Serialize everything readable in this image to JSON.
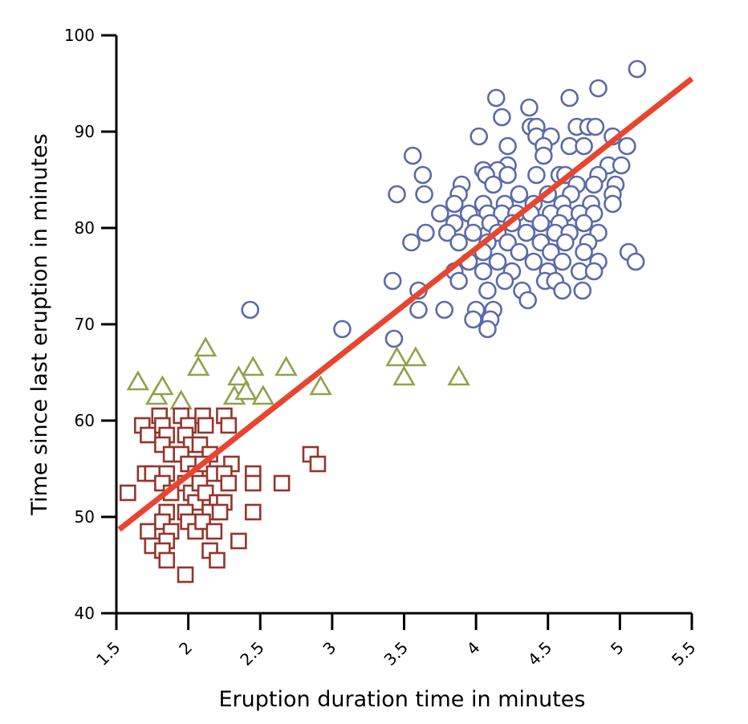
{
  "chart_data": {
    "type": "scatter",
    "title": "",
    "xlabel": "Eruption duration time in minutes",
    "ylabel": "Time since last eruption in minutes",
    "xlim": [
      1.5,
      5.5
    ],
    "ylim": [
      40,
      100
    ],
    "xticks": [
      "1.5",
      "2",
      "2.5",
      "3",
      "3.5",
      "4",
      "4.5",
      "5",
      "5.5"
    ],
    "yticks": [
      "40",
      "50",
      "60",
      "70",
      "80",
      "90",
      "100"
    ],
    "grid": false,
    "legend": "none",
    "series": [
      {
        "marker": "circle",
        "color": "#5b6aa8",
        "points": [
          [
            5.12,
            96.5
          ],
          [
            4.85,
            94.5
          ],
          [
            4.14,
            93.5
          ],
          [
            4.37,
            92.5
          ],
          [
            4.65,
            93.5
          ],
          [
            4.18,
            91.5
          ],
          [
            4.38,
            90.5
          ],
          [
            4.42,
            90.5
          ],
          [
            4.7,
            90.5
          ],
          [
            4.78,
            90.5
          ],
          [
            4.83,
            90.5
          ],
          [
            4.02,
            89.5
          ],
          [
            4.42,
            89.5
          ],
          [
            4.52,
            89.5
          ],
          [
            4.95,
            89.5
          ],
          [
            5.05,
            88.5
          ],
          [
            4.22,
            88.5
          ],
          [
            4.47,
            88.5
          ],
          [
            4.65,
            88.5
          ],
          [
            4.75,
            88.5
          ],
          [
            3.56,
            87.5
          ],
          [
            4.47,
            87.5
          ],
          [
            4.22,
            86.5
          ],
          [
            4.92,
            86.5
          ],
          [
            5.01,
            86.5
          ],
          [
            4.05,
            86.0
          ],
          [
            4.15,
            86.0
          ],
          [
            3.63,
            85.5
          ],
          [
            4.07,
            85.5
          ],
          [
            4.22,
            85.5
          ],
          [
            4.42,
            85.5
          ],
          [
            4.58,
            85.5
          ],
          [
            4.62,
            85.5
          ],
          [
            4.85,
            85.5
          ],
          [
            4.82,
            84.5
          ],
          [
            4.97,
            84.5
          ],
          [
            3.9,
            84.5
          ],
          [
            4.12,
            84.5
          ],
          [
            4.7,
            84.5
          ],
          [
            3.45,
            83.5
          ],
          [
            3.64,
            83.5
          ],
          [
            3.88,
            83.5
          ],
          [
            4.3,
            83.5
          ],
          [
            4.5,
            83.5
          ],
          [
            4.66,
            83.5
          ],
          [
            4.95,
            83.5
          ],
          [
            3.85,
            82.5
          ],
          [
            4.05,
            82.5
          ],
          [
            4.2,
            82.5
          ],
          [
            4.4,
            82.5
          ],
          [
            4.6,
            82.5
          ],
          [
            4.8,
            82.5
          ],
          [
            4.95,
            82.5
          ],
          [
            3.75,
            81.5
          ],
          [
            3.95,
            81.5
          ],
          [
            4.08,
            81.5
          ],
          [
            4.18,
            81.5
          ],
          [
            4.28,
            81.5
          ],
          [
            4.38,
            81.5
          ],
          [
            4.52,
            81.5
          ],
          [
            4.62,
            81.5
          ],
          [
            4.72,
            81.5
          ],
          [
            4.82,
            81.5
          ],
          [
            3.85,
            80.5
          ],
          [
            4.0,
            80.5
          ],
          [
            4.1,
            80.5
          ],
          [
            4.25,
            80.5
          ],
          [
            4.45,
            80.5
          ],
          [
            4.58,
            80.5
          ],
          [
            4.75,
            80.5
          ],
          [
            3.65,
            79.5
          ],
          [
            3.8,
            79.5
          ],
          [
            3.98,
            79.5
          ],
          [
            4.15,
            79.5
          ],
          [
            4.35,
            79.5
          ],
          [
            4.55,
            79.5
          ],
          [
            4.65,
            79.5
          ],
          [
            4.85,
            79.5
          ],
          [
            3.55,
            78.5
          ],
          [
            3.88,
            78.5
          ],
          [
            4.08,
            78.5
          ],
          [
            4.22,
            78.5
          ],
          [
            4.45,
            78.5
          ],
          [
            4.62,
            78.5
          ],
          [
            4.78,
            78.5
          ],
          [
            4.05,
            77.5
          ],
          [
            4.3,
            77.5
          ],
          [
            4.52,
            77.5
          ],
          [
            4.75,
            77.5
          ],
          [
            5.06,
            77.5
          ],
          [
            3.95,
            76.5
          ],
          [
            4.15,
            76.5
          ],
          [
            4.4,
            76.5
          ],
          [
            4.6,
            76.5
          ],
          [
            4.85,
            76.5
          ],
          [
            5.11,
            76.5
          ],
          [
            3.85,
            75.5
          ],
          [
            4.05,
            75.5
          ],
          [
            4.25,
            75.5
          ],
          [
            4.5,
            75.5
          ],
          [
            4.72,
            75.5
          ],
          [
            4.82,
            75.5
          ],
          [
            3.42,
            74.5
          ],
          [
            3.88,
            74.5
          ],
          [
            4.2,
            74.5
          ],
          [
            4.48,
            74.5
          ],
          [
            4.55,
            74.5
          ],
          [
            3.6,
            73.5
          ],
          [
            4.08,
            73.5
          ],
          [
            4.32,
            73.5
          ],
          [
            4.6,
            73.5
          ],
          [
            4.74,
            73.5
          ],
          [
            4.36,
            72.5
          ],
          [
            3.6,
            71.5
          ],
          [
            3.78,
            71.5
          ],
          [
            4.0,
            71.5
          ],
          [
            4.12,
            71.5
          ],
          [
            3.98,
            70.5
          ],
          [
            4.1,
            70.5
          ],
          [
            4.08,
            69.5
          ],
          [
            2.43,
            71.5
          ],
          [
            3.07,
            69.5
          ],
          [
            3.43,
            68.5
          ]
        ]
      },
      {
        "marker": "triangle",
        "color": "#8fa24b",
        "points": [
          [
            1.65,
            64.0
          ],
          [
            1.78,
            62.5
          ],
          [
            1.82,
            63.5
          ],
          [
            1.95,
            62.0
          ],
          [
            2.07,
            65.5
          ],
          [
            2.12,
            67.5
          ],
          [
            2.32,
            62.5
          ],
          [
            2.35,
            64.5
          ],
          [
            2.4,
            63.0
          ],
          [
            2.45,
            65.5
          ],
          [
            2.52,
            62.5
          ],
          [
            2.68,
            65.5
          ],
          [
            2.92,
            63.5
          ],
          [
            3.45,
            66.5
          ],
          [
            3.5,
            64.5
          ],
          [
            3.58,
            66.5
          ],
          [
            3.88,
            64.5
          ]
        ]
      },
      {
        "marker": "square",
        "color": "#94352c",
        "points": [
          [
            1.58,
            52.5
          ],
          [
            1.68,
            59.5
          ],
          [
            1.72,
            58.5
          ],
          [
            1.7,
            54.5
          ],
          [
            1.75,
            54.5
          ],
          [
            1.72,
            48.5
          ],
          [
            1.75,
            47.0
          ],
          [
            1.8,
            60.5
          ],
          [
            1.82,
            59.5
          ],
          [
            1.85,
            58.5
          ],
          [
            1.82,
            57.5
          ],
          [
            1.88,
            56.5
          ],
          [
            1.85,
            54.5
          ],
          [
            1.82,
            53.5
          ],
          [
            1.88,
            52.5
          ],
          [
            1.85,
            50.5
          ],
          [
            1.82,
            49.5
          ],
          [
            1.88,
            48.5
          ],
          [
            1.85,
            47.5
          ],
          [
            1.82,
            46.5
          ],
          [
            1.85,
            45.5
          ],
          [
            1.95,
            60.5
          ],
          [
            2.0,
            59.5
          ],
          [
            1.98,
            58.5
          ],
          [
            2.02,
            57.5
          ],
          [
            1.95,
            56.5
          ],
          [
            2.0,
            55.5
          ],
          [
            2.05,
            54.5
          ],
          [
            1.98,
            53.5
          ],
          [
            2.02,
            52.5
          ],
          [
            2.05,
            51.5
          ],
          [
            1.98,
            50.5
          ],
          [
            2.0,
            49.5
          ],
          [
            2.05,
            48.5
          ],
          [
            1.98,
            44.0
          ],
          [
            2.1,
            60.5
          ],
          [
            2.12,
            59.5
          ],
          [
            2.08,
            57.5
          ],
          [
            2.15,
            56.5
          ],
          [
            2.1,
            55.5
          ],
          [
            2.18,
            54.5
          ],
          [
            2.08,
            53.5
          ],
          [
            2.12,
            52.5
          ],
          [
            2.2,
            51.5
          ],
          [
            2.15,
            50.5
          ],
          [
            2.1,
            49.5
          ],
          [
            2.18,
            48.5
          ],
          [
            2.15,
            46.5
          ],
          [
            2.2,
            45.5
          ],
          [
            2.25,
            60.5
          ],
          [
            2.28,
            59.5
          ],
          [
            2.3,
            55.5
          ],
          [
            2.25,
            54.5
          ],
          [
            2.28,
            53.5
          ],
          [
            2.25,
            51.5
          ],
          [
            2.22,
            50.5
          ],
          [
            2.35,
            47.5
          ],
          [
            2.45,
            54.5
          ],
          [
            2.45,
            53.5
          ],
          [
            2.45,
            50.5
          ],
          [
            2.65,
            53.5
          ],
          [
            2.85,
            56.5
          ],
          [
            2.9,
            55.5
          ]
        ]
      }
    ],
    "trendline": {
      "color": "#e84530",
      "from": [
        1.52,
        48.7
      ],
      "to": [
        5.5,
        95.5
      ]
    }
  }
}
